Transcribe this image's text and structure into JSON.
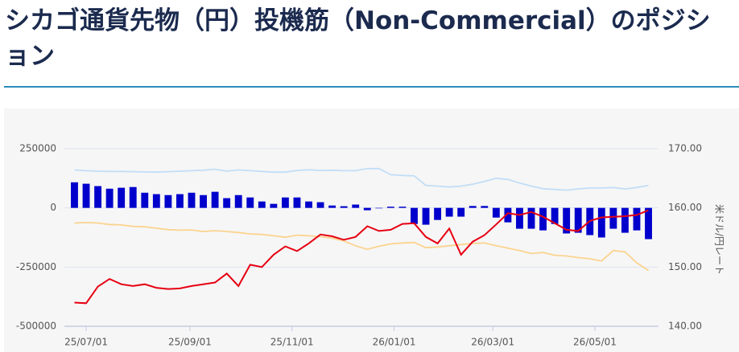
{
  "chart_data": {
    "type": "combo",
    "title": "シカゴ通貨先物（円）投機筋（Non-Commercial）のポジション",
    "y2label": "米ドル/円レート",
    "x": [
      "25/06/24",
      "25/07/01",
      "25/07/08",
      "25/07/15",
      "25/07/22",
      "25/07/29",
      "25/08/05",
      "25/08/12",
      "25/08/19",
      "25/08/26",
      "25/09/02",
      "25/09/09",
      "25/09/16",
      "25/09/23",
      "25/09/30",
      "25/10/07",
      "25/10/14",
      "25/10/21",
      "25/10/28",
      "25/11/04",
      "25/11/11",
      "25/11/18",
      "25/11/25",
      "25/12/02",
      "25/12/09",
      "25/12/16",
      "25/12/23",
      "25/12/30",
      "26/01/06",
      "26/01/13",
      "26/01/20",
      "26/01/27",
      "26/02/03",
      "26/02/10",
      "26/02/17",
      "26/02/24",
      "26/03/03",
      "26/03/10",
      "26/03/17",
      "26/03/24",
      "26/03/31",
      "26/04/07",
      "26/04/14",
      "26/04/21",
      "26/04/28",
      "26/05/05",
      "26/05/12",
      "26/05/19",
      "26/05/26",
      "26/06/02"
    ],
    "xlim": [
      "25/06/18",
      "26/06/08"
    ],
    "xticks": [
      "25/07/01",
      "25/09/01",
      "25/11/01",
      "26/01/01",
      "26/03/01",
      "26/05/01"
    ],
    "ylim": [
      -500000,
      250000
    ],
    "yticks": [
      -500000,
      -250000,
      0,
      250000
    ],
    "y2lim": [
      140,
      170
    ],
    "y2ticks": [
      {
        "value": 140,
        "label": "140.00"
      },
      {
        "value": 150,
        "label": "150.00"
      },
      {
        "value": 160,
        "label": "160.00"
      },
      {
        "value": 170,
        "label": "170.00"
      }
    ],
    "grid": true,
    "series": [
      {
        "type": "bar",
        "color": "#0000cc",
        "values": [
          108000,
          102000,
          92000,
          81000,
          85000,
          88000,
          64000,
          58000,
          54000,
          58000,
          64000,
          54000,
          68000,
          41000,
          54000,
          44000,
          27000,
          17000,
          44000,
          44000,
          27000,
          24000,
          10000,
          7000,
          14000,
          -10000,
          -2000,
          5000,
          5000,
          -68000,
          -71000,
          -51000,
          -37000,
          -37000,
          8000,
          8000,
          -41000,
          -61000,
          -88000,
          -88000,
          -95000,
          -68000,
          -108000,
          -105000,
          -115000,
          -125000,
          -88000,
          -105000,
          -95000,
          -132000
        ]
      },
      {
        "type": "line",
        "color": "#c2def7",
        "values": [
          160000,
          157000,
          155000,
          154000,
          154000,
          153000,
          152000,
          151000,
          153000,
          155000,
          157000,
          159000,
          163000,
          155000,
          160000,
          157000,
          154000,
          151000,
          151000,
          158000,
          161000,
          158000,
          159000,
          157000,
          157000,
          166000,
          166000,
          140000,
          137000,
          135000,
          95000,
          92000,
          88000,
          92000,
          100000,
          112000,
          125000,
          120000,
          105000,
          92000,
          81000,
          78000,
          75000,
          80000,
          84000,
          84000,
          86000,
          80000,
          86000,
          95000
        ]
      },
      {
        "type": "line",
        "color": "#fbd38e",
        "values": [
          -64000,
          -62000,
          -64000,
          -70000,
          -72000,
          -78000,
          -80000,
          -86000,
          -92000,
          -94000,
          -93000,
          -100000,
          -96000,
          -100000,
          -104000,
          -110000,
          -112000,
          -118000,
          -124000,
          -115000,
          -118000,
          -122000,
          -128000,
          -140000,
          -160000,
          -175000,
          -162000,
          -152000,
          -148000,
          -146000,
          -168000,
          -165000,
          -160000,
          -155000,
          -150000,
          -148000,
          -160000,
          -170000,
          -180000,
          -193000,
          -188000,
          -200000,
          -203000,
          -210000,
          -215000,
          -224000,
          -180000,
          -186000,
          -232000,
          -264000
        ]
      },
      {
        "type": "line",
        "color": "#e60012",
        "axis": "y2",
        "values": [
          144.0,
          143.9,
          146.7,
          148.0,
          147.1,
          146.8,
          147.1,
          146.5,
          146.3,
          146.4,
          146.8,
          147.1,
          147.4,
          148.9,
          146.8,
          150.4,
          150.0,
          152.1,
          153.5,
          152.7,
          154.0,
          155.5,
          155.2,
          154.6,
          155.1,
          156.9,
          156.1,
          156.3,
          157.3,
          157.4,
          155.1,
          154.0,
          156.5,
          152.1,
          154.3,
          155.4,
          157.2,
          159.1,
          158.8,
          159.3,
          158.5,
          157.4,
          156.3,
          156.1,
          157.8,
          158.4,
          158.5,
          158.6,
          158.8,
          159.6
        ]
      }
    ]
  }
}
